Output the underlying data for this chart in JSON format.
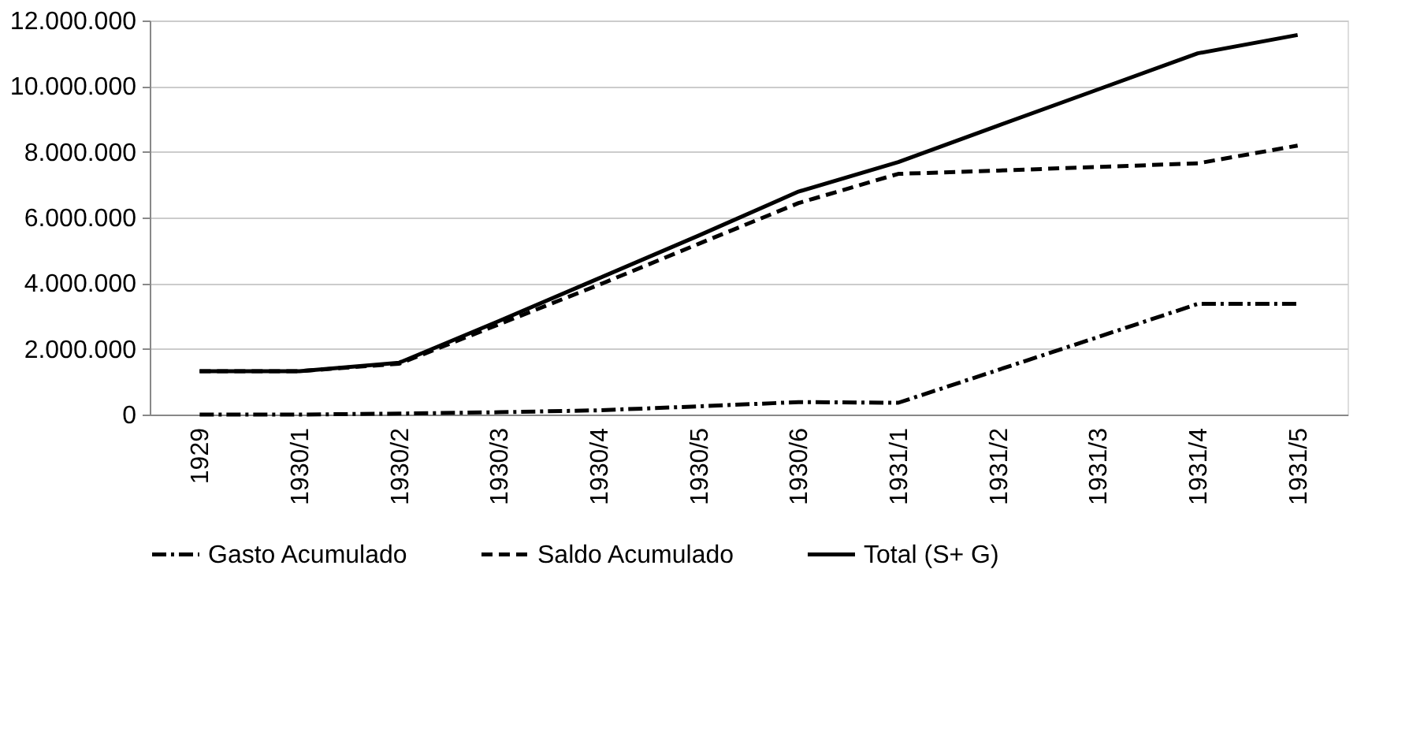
{
  "chart_data": {
    "type": "line",
    "categories": [
      "1929",
      "1930/1",
      "1930/2",
      "1930/3",
      "1930/4",
      "1930/5",
      "1930/6",
      "1931/1",
      "1931/2",
      "1931/3",
      "1931/4",
      "1931/5"
    ],
    "series": [
      {
        "name": "Gasto Acumulado",
        "color": "#000000",
        "line_style": "dashdot",
        "values": [
          0,
          0,
          30000,
          70000,
          130000,
          250000,
          380000,
          360000,
          1360000,
          2360000,
          3370000,
          3370000
        ]
      },
      {
        "name": "Saldo Acumulado",
        "color": "#000000",
        "line_style": "dashed",
        "values": [
          1320000,
          1320000,
          1550000,
          2750000,
          3950000,
          5200000,
          6440000,
          7330000,
          7430000,
          7540000,
          7650000,
          8190000
        ]
      },
      {
        "name": "Total (S+ G)",
        "color": "#000000",
        "line_style": "solid",
        "values": [
          1320000,
          1320000,
          1580000,
          2850000,
          4150000,
          5450000,
          6790000,
          7690000,
          8800000,
          9900000,
          11000000,
          11560000
        ]
      }
    ],
    "ylim": [
      0,
      12000000
    ],
    "yticks": [
      {
        "value": 0,
        "label": "0"
      },
      {
        "value": 2000000,
        "label": "2.000.000"
      },
      {
        "value": 4000000,
        "label": "4.000.000"
      },
      {
        "value": 6000000,
        "label": "6.000.000"
      },
      {
        "value": 8000000,
        "label": "8.000.000"
      },
      {
        "value": 10000000,
        "label": "10.000.000"
      },
      {
        "value": 12000000,
        "label": "12.000.000"
      }
    ],
    "grid": "y",
    "legend": "bottom",
    "marker": "none"
  }
}
